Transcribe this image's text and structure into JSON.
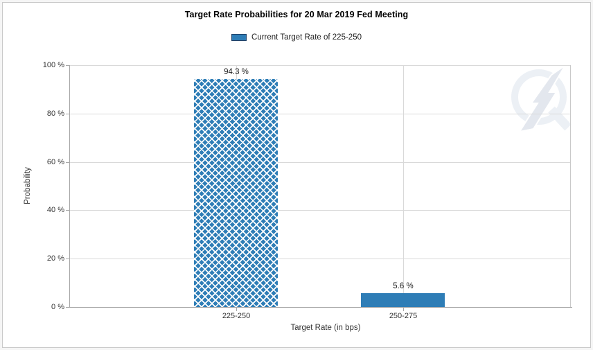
{
  "chart": {
    "title": "Target Rate Probabilities for 20 Mar 2019 Fed Meeting",
    "legend_label": "Current Target Rate of 225-250",
    "watermark_icon": "quikstrike-lightning-q-logo"
  },
  "chart_data": {
    "type": "bar",
    "title": "Target Rate Probabilities for 20 Mar 2019 Fed Meeting",
    "categories": [
      "225-250",
      "250-275"
    ],
    "values": [
      94.3,
      5.6
    ],
    "bar_labels": [
      "94.3 %",
      "5.6 %"
    ],
    "hatched": [
      true,
      false
    ],
    "xlabel": "Target Rate (in bps)",
    "ylabel": "Probability",
    "ylim": [
      0,
      100
    ],
    "yticks": [
      0,
      20,
      40,
      60,
      80,
      100
    ],
    "ytick_labels": [
      "0 %",
      "20 %",
      "40 %",
      "60 %",
      "80 %",
      "100 %"
    ],
    "legend": [
      "Current Target Rate of 225-250"
    ],
    "legend_position": "top",
    "grid": true,
    "colors": {
      "bar": "#2e7db6",
      "hatch_line": "#ffffff",
      "legend_swatch_border": "#1e3f66",
      "grid": "#d9d9d9",
      "axis": "#a8a8a8",
      "plot_border": "#c9c9c9",
      "text": "#333333",
      "title": "#000000",
      "watermark_ring": "#ecf0f5",
      "watermark_bolt": "#e3e7ee"
    }
  }
}
